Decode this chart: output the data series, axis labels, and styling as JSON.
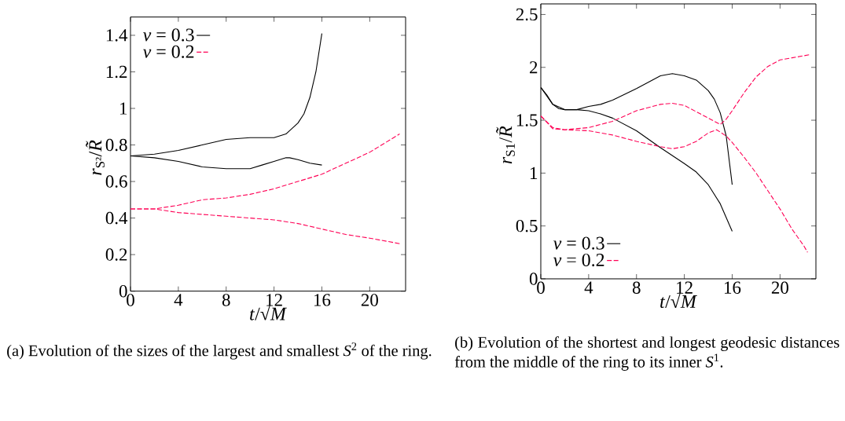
{
  "chart_data": [
    {
      "type": "line",
      "xlabel": "*t*/√*M*",
      "ylabel": "*r*$_{S²}$/*R̃*",
      "xlim": [
        0,
        23
      ],
      "ylim": [
        0,
        1.5
      ],
      "xticks": [
        0,
        4,
        8,
        12,
        16,
        20
      ],
      "yticks": [
        0,
        0.2,
        0.4,
        0.6,
        0.8,
        1,
        1.2,
        1.4
      ],
      "legend": "top left",
      "grid": false,
      "annotations": [
        "(a) Evolution of the sizes of the largest and smallest *S*$^{2}$ of the ring."
      ],
      "series": [
        {
          "name": "*ν* = 0.3",
          "color": "#000000",
          "line_style": "solid",
          "x": [
            0,
            2,
            4,
            6,
            8,
            10,
            12,
            13,
            14,
            14.5,
            15,
            15.5,
            16
          ],
          "values": [
            0.74,
            0.75,
            0.77,
            0.8,
            0.83,
            0.84,
            0.84,
            0.86,
            0.92,
            0.97,
            1.06,
            1.2,
            1.41
          ]
        },
        {
          "color": "#000000",
          "line_style": "solid",
          "x": [
            0,
            2,
            4,
            6,
            8,
            9,
            10,
            11,
            12,
            13,
            13.3,
            14,
            15,
            16
          ],
          "values": [
            0.74,
            0.73,
            0.71,
            0.68,
            0.67,
            0.67,
            0.67,
            0.69,
            0.71,
            0.73,
            0.73,
            0.72,
            0.7,
            0.69
          ]
        },
        {
          "name": "*ν* = 0.2",
          "color": "#ff0055",
          "line_style": "dashed",
          "x": [
            0,
            2,
            4,
            6,
            8,
            10,
            12,
            14,
            16,
            18,
            20,
            22.5
          ],
          "values": [
            0.45,
            0.45,
            0.47,
            0.5,
            0.51,
            0.53,
            0.56,
            0.6,
            0.64,
            0.7,
            0.76,
            0.86
          ]
        },
        {
          "color": "#ff0055",
          "line_style": "dashed",
          "x": [
            0,
            2,
            4,
            6,
            8,
            10,
            12,
            14,
            16,
            18,
            20,
            22.5
          ],
          "values": [
            0.45,
            0.45,
            0.43,
            0.42,
            0.41,
            0.4,
            0.39,
            0.37,
            0.34,
            0.31,
            0.29,
            0.26
          ]
        }
      ]
    },
    {
      "type": "line",
      "xlabel": "*t*/√*M*",
      "ylabel": "*r*$_{S1}$/*R̃*",
      "xlim": [
        0,
        23
      ],
      "ylim": [
        0,
        2.6
      ],
      "xticks": [
        0,
        4,
        8,
        12,
        16,
        20
      ],
      "yticks": [
        0,
        0.5,
        1,
        1.5,
        2,
        2.5
      ],
      "legend": "bottom left",
      "grid": false,
      "annotations": [
        "(b) Evolution of the shortest and longest geodesic distances from the middle of the ring to its inner *S*$^{1}$."
      ],
      "series": [
        {
          "name": "*ν* = 0.3",
          "color": "#000000",
          "line_style": "solid",
          "x": [
            0,
            0.5,
            1,
            1.5,
            2,
            3,
            4,
            5,
            6,
            8,
            10,
            11,
            12,
            13,
            14,
            14.5,
            15,
            15.5,
            16
          ],
          "values": [
            1.81,
            1.74,
            1.65,
            1.61,
            1.6,
            1.6,
            1.63,
            1.65,
            1.69,
            1.8,
            1.92,
            1.94,
            1.92,
            1.88,
            1.78,
            1.7,
            1.57,
            1.35,
            0.89
          ]
        },
        {
          "color": "#000000",
          "line_style": "solid",
          "x": [
            0,
            1,
            2,
            3,
            4,
            5,
            6,
            8,
            10,
            12,
            13,
            14,
            15,
            16
          ],
          "values": [
            1.81,
            1.65,
            1.6,
            1.6,
            1.59,
            1.56,
            1.52,
            1.4,
            1.24,
            1.09,
            1.01,
            0.89,
            0.71,
            0.45
          ]
        },
        {
          "name": "*ν* = 0.2",
          "color": "#ff0055",
          "line_style": "dashed",
          "x": [
            0,
            1,
            2,
            4,
            6,
            8,
            10,
            11,
            12,
            14,
            15,
            15.5,
            16,
            17,
            18,
            19,
            20,
            21,
            22,
            22.5
          ],
          "values": [
            1.54,
            1.43,
            1.41,
            1.43,
            1.49,
            1.59,
            1.65,
            1.66,
            1.64,
            1.52,
            1.46,
            1.51,
            1.59,
            1.76,
            1.91,
            2.01,
            2.07,
            2.09,
            2.11,
            2.12
          ]
        },
        {
          "color": "#ff0055",
          "line_style": "dashed",
          "x": [
            0,
            1,
            2,
            4,
            6,
            8,
            10,
            11,
            12,
            13,
            14,
            14.7,
            15.5,
            16,
            17,
            18,
            19,
            20,
            21,
            22,
            22.3
          ],
          "values": [
            1.54,
            1.42,
            1.41,
            1.4,
            1.36,
            1.3,
            1.25,
            1.23,
            1.25,
            1.3,
            1.38,
            1.41,
            1.35,
            1.29,
            1.15,
            1.0,
            0.83,
            0.66,
            0.47,
            0.31,
            0.25
          ]
        }
      ]
    }
  ]
}
